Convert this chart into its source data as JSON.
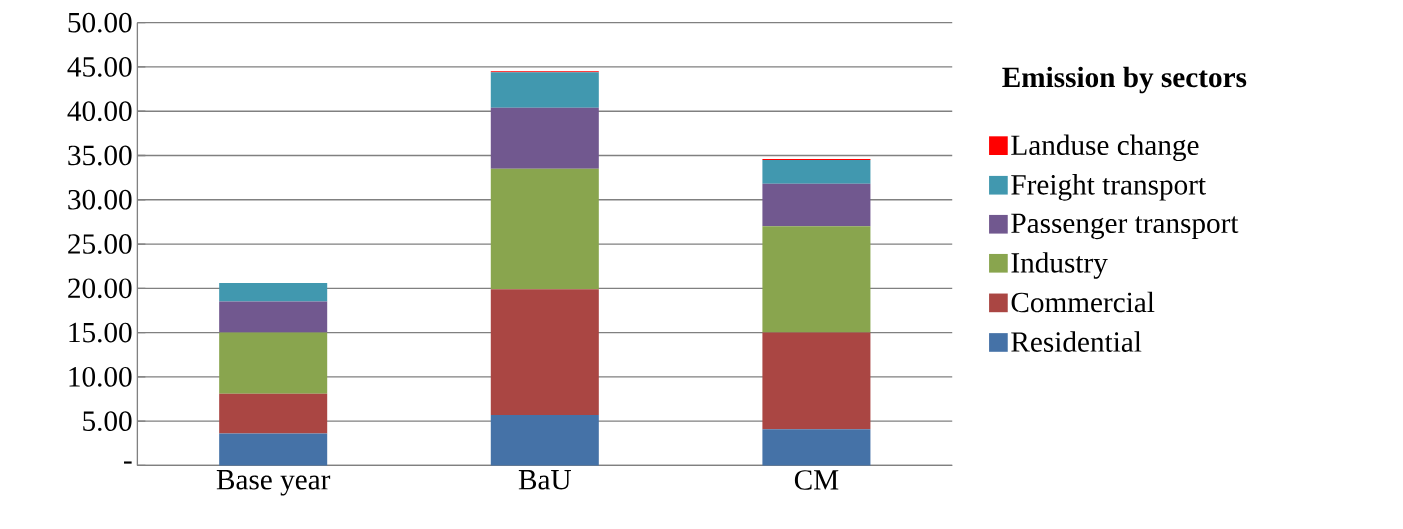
{
  "chart_data": {
    "type": "bar",
    "stacked": true,
    "categories": [
      "Base year",
      "BaU",
      "CM"
    ],
    "series": [
      {
        "name": "Residential",
        "color": "#4572a7",
        "values": [
          3.6,
          5.7,
          4.1
        ]
      },
      {
        "name": "Commercial",
        "color": "#aa4643",
        "values": [
          4.5,
          14.2,
          10.9
        ]
      },
      {
        "name": "Industry",
        "color": "#89a54e",
        "values": [
          6.9,
          13.6,
          12.0
        ]
      },
      {
        "name": "Passenger transport",
        "color": "#71588f",
        "values": [
          3.5,
          6.9,
          4.8
        ]
      },
      {
        "name": "Freight transport",
        "color": "#4198af",
        "values": [
          2.1,
          4.0,
          2.7
        ]
      },
      {
        "name": "Landuse change",
        "color": "#ff0000",
        "values": [
          0,
          0.1,
          0.1
        ]
      }
    ],
    "legend_title": "Emission by sectors",
    "legend": "right",
    "grid": "y",
    "ylim": [
      0,
      50
    ],
    "yticks": [
      {
        "value": 0,
        "label": "-"
      },
      {
        "value": 5,
        "label": "5.00"
      },
      {
        "value": 10,
        "label": "10.00"
      },
      {
        "value": 15,
        "label": "15.00"
      },
      {
        "value": 20,
        "label": "20.00"
      },
      {
        "value": 25,
        "label": "25.00"
      },
      {
        "value": 30,
        "label": "30.00"
      },
      {
        "value": 35,
        "label": "35.00"
      },
      {
        "value": 40,
        "label": "40.00"
      },
      {
        "value": 45,
        "label": "45.00"
      },
      {
        "value": 50,
        "label": "50.00"
      }
    ]
  }
}
